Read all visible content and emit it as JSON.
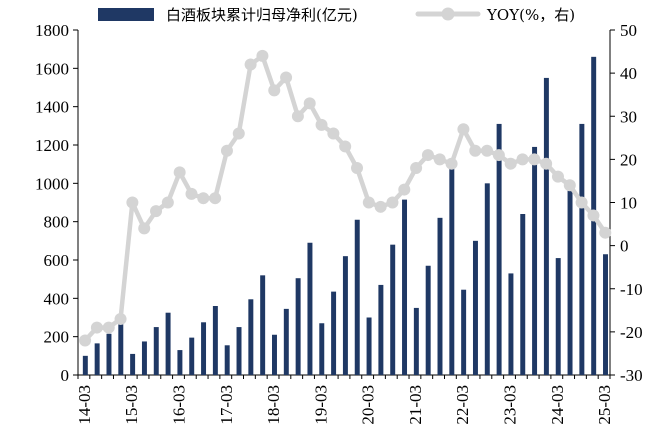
{
  "chart_data": {
    "type": "bar+line",
    "legend": {
      "placement": "top",
      "bar_label": "白酒板块累计归母净利(亿元)",
      "line_label": "YOY(%，右)"
    },
    "colors": {
      "bar": "#1f3864",
      "line": "#d4d4d4"
    },
    "x_tick_labels": [
      "14-03",
      "15-03",
      "16-03",
      "17-03",
      "18-03",
      "19-03",
      "20-03",
      "21-03",
      "22-03",
      "23-03",
      "24-03",
      "25-03"
    ],
    "y_left": {
      "min": 0,
      "max": 1800,
      "step": 200
    },
    "y_right": {
      "min": -30,
      "max": 50,
      "step": 10
    },
    "x": [
      "14-03",
      "14-06",
      "14-09",
      "14-12",
      "15-03",
      "15-06",
      "15-09",
      "15-12",
      "16-03",
      "16-06",
      "16-09",
      "16-12",
      "17-03",
      "17-06",
      "17-09",
      "17-12",
      "18-03",
      "18-06",
      "18-09",
      "18-12",
      "19-03",
      "19-06",
      "19-09",
      "19-12",
      "20-03",
      "20-06",
      "20-09",
      "20-12",
      "21-03",
      "21-06",
      "21-09",
      "21-12",
      "22-03",
      "22-06",
      "22-09",
      "22-12",
      "23-03",
      "23-06",
      "23-09",
      "23-12",
      "24-03",
      "24-06",
      "24-09",
      "24-12",
      "25-03"
    ],
    "series": [
      {
        "name": "白酒板块累计归母净利(亿元)",
        "axis": "left",
        "kind": "bar",
        "values": [
          100,
          165,
          215,
          265,
          110,
          175,
          250,
          325,
          130,
          195,
          275,
          360,
          155,
          250,
          395,
          520,
          210,
          345,
          505,
          690,
          270,
          435,
          620,
          810,
          300,
          470,
          680,
          915,
          350,
          570,
          820,
          1105,
          445,
          700,
          1000,
          1310,
          530,
          840,
          1190,
          1550,
          610,
          970,
          1310,
          1660,
          630
        ]
      },
      {
        "name": "YOY(%，右)",
        "axis": "right",
        "kind": "line",
        "values": [
          -22,
          -19,
          -19,
          -17,
          10,
          4,
          8,
          10,
          17,
          12,
          11,
          11,
          22,
          26,
          42,
          44,
          36,
          39,
          30,
          33,
          28,
          26,
          23,
          18,
          10,
          9,
          10,
          13,
          18,
          21,
          20,
          19,
          27,
          22,
          22,
          21,
          19,
          20,
          20,
          19,
          16,
          14,
          10,
          7,
          3
        ]
      }
    ]
  }
}
